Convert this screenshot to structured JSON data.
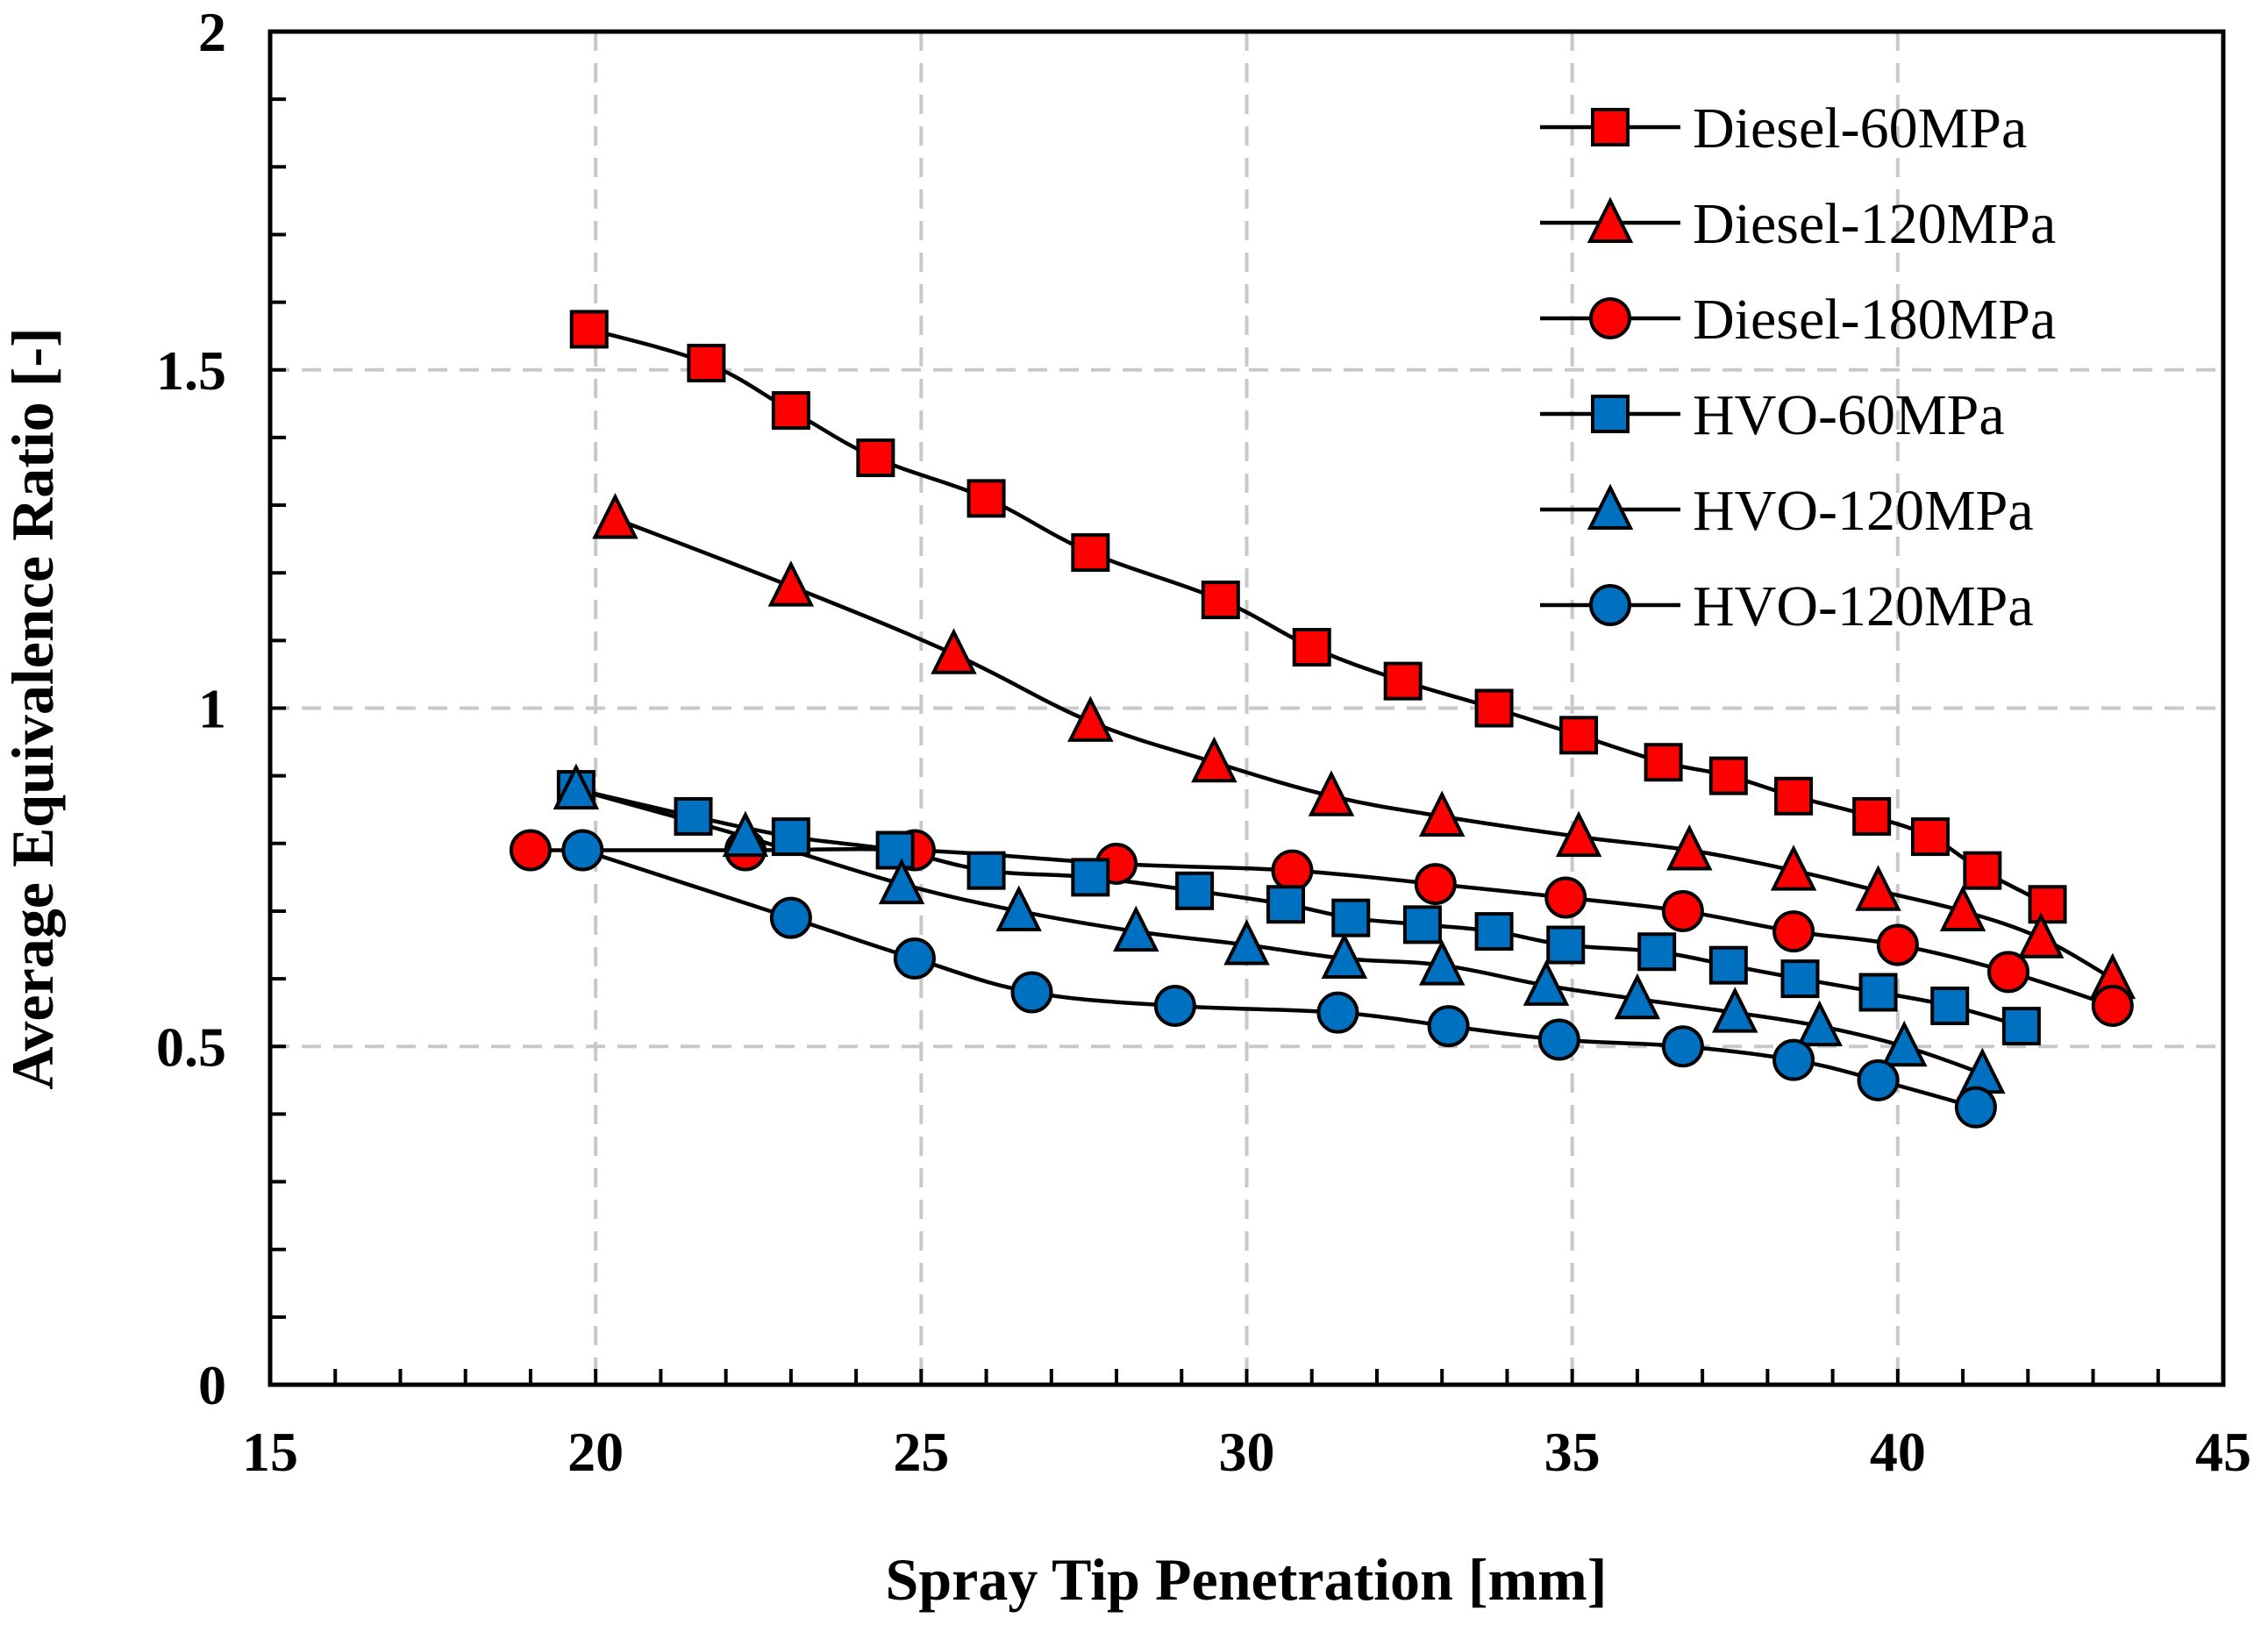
{
  "chart_data": {
    "type": "line",
    "title": "",
    "xlabel": "Spray Tip Penetration [mm]",
    "ylabel": "Average Equivalence Ratio [-]",
    "xlim": [
      15,
      45
    ],
    "ylim": [
      0,
      2
    ],
    "x_ticks": [
      15,
      20,
      25,
      30,
      35,
      40,
      45
    ],
    "x_tick_labels": [
      "15",
      "20",
      "25",
      "30",
      "35",
      "40",
      "45"
    ],
    "y_ticks": [
      0,
      0.5,
      1,
      1.5,
      2
    ],
    "y_tick_labels": [
      "0",
      "0.5",
      "1",
      "1.5",
      "2"
    ],
    "grid": true,
    "legend_position": "top-right",
    "colors": {
      "diesel": "#ff0000",
      "hvo": "#0070c0",
      "line": "#000000",
      "grid": "#c8c8c8"
    },
    "series": [
      {
        "name": "Diesel-60MPa",
        "marker": "square",
        "color": "#ff0000",
        "x": [
          19.9,
          21.7,
          23.0,
          24.3,
          26.0,
          27.6,
          29.6,
          31.0,
          32.4,
          33.8,
          35.1,
          36.4,
          37.4,
          38.4,
          39.6,
          40.5,
          41.3,
          42.3
        ],
        "y": [
          1.56,
          1.51,
          1.44,
          1.37,
          1.31,
          1.23,
          1.16,
          1.09,
          1.04,
          1.0,
          0.96,
          0.92,
          0.9,
          0.87,
          0.84,
          0.81,
          0.76,
          0.71
        ]
      },
      {
        "name": "Diesel-120MPa",
        "marker": "triangle",
        "color": "#ff0000",
        "x": [
          20.3,
          23.0,
          25.5,
          27.6,
          29.5,
          31.3,
          33.0,
          35.1,
          36.8,
          38.4,
          39.7,
          41.0,
          42.2,
          43.3
        ],
        "y": [
          1.28,
          1.18,
          1.08,
          0.98,
          0.92,
          0.87,
          0.84,
          0.81,
          0.79,
          0.76,
          0.73,
          0.7,
          0.66,
          0.6
        ]
      },
      {
        "name": "Diesel-180MPa",
        "marker": "circle",
        "color": "#ff0000",
        "x": [
          19.0,
          22.3,
          24.9,
          28.0,
          30.7,
          32.9,
          34.9,
          36.7,
          38.4,
          40.0,
          41.7,
          43.3
        ],
        "y": [
          0.79,
          0.79,
          0.79,
          0.77,
          0.76,
          0.74,
          0.72,
          0.7,
          0.67,
          0.65,
          0.61,
          0.56
        ]
      },
      {
        "name": "HVO-60MPa",
        "marker": "square",
        "color": "#0070c0",
        "x": [
          19.7,
          21.5,
          23.0,
          24.6,
          26.0,
          27.6,
          29.2,
          30.6,
          31.6,
          32.7,
          33.8,
          34.9,
          36.3,
          37.4,
          38.5,
          39.7,
          40.8,
          41.9
        ],
        "y": [
          0.88,
          0.84,
          0.81,
          0.79,
          0.76,
          0.75,
          0.73,
          0.71,
          0.69,
          0.68,
          0.67,
          0.65,
          0.64,
          0.62,
          0.6,
          0.58,
          0.56,
          0.53
        ]
      },
      {
        "name": "HVO-120MPa",
        "marker": "triangle",
        "color": "#0070c0",
        "x": [
          19.7,
          22.3,
          24.7,
          26.5,
          28.3,
          30.0,
          31.5,
          33.0,
          34.6,
          36.0,
          37.5,
          38.8,
          40.1,
          41.3
        ],
        "y": [
          0.88,
          0.81,
          0.74,
          0.7,
          0.67,
          0.65,
          0.63,
          0.62,
          0.59,
          0.57,
          0.55,
          0.53,
          0.5,
          0.46
        ]
      },
      {
        "name": "HVO-120MPa",
        "marker": "circle",
        "color": "#0070c0",
        "x": [
          19.8,
          23.0,
          24.9,
          26.7,
          28.9,
          31.4,
          33.1,
          34.8,
          36.7,
          38.4,
          39.7,
          41.2
        ],
        "y": [
          0.79,
          0.69,
          0.63,
          0.58,
          0.56,
          0.55,
          0.53,
          0.51,
          0.5,
          0.48,
          0.45,
          0.41
        ]
      }
    ]
  }
}
